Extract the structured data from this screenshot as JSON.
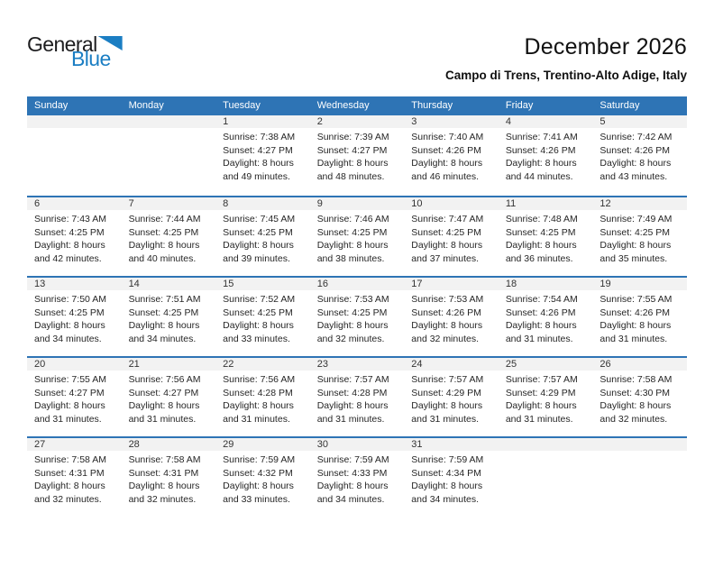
{
  "logo": {
    "word_general": "General",
    "word_blue": "Blue",
    "triangle_icon_color": "#1b7ec3"
  },
  "header": {
    "title": "December 2026",
    "subtitle": "Campo di Trens, Trentino-Alto Adige, Italy"
  },
  "colors": {
    "header_bar_blue": "#2e74b5",
    "week_divider_blue": "#2e74b5",
    "day_number_band_gray": "#f2f2f2",
    "logo_blue": "#1b7ec3",
    "body_text": "#262626"
  },
  "calendar": {
    "day_headers": [
      "Sunday",
      "Monday",
      "Tuesday",
      "Wednesday",
      "Thursday",
      "Friday",
      "Saturday"
    ],
    "weeks": [
      [
        null,
        null,
        {
          "day": "1",
          "sunrise": "Sunrise: 7:38 AM",
          "sunset": "Sunset: 4:27 PM",
          "daylight": "Daylight: 8 hours and 49 minutes."
        },
        {
          "day": "2",
          "sunrise": "Sunrise: 7:39 AM",
          "sunset": "Sunset: 4:27 PM",
          "daylight": "Daylight: 8 hours and 48 minutes."
        },
        {
          "day": "3",
          "sunrise": "Sunrise: 7:40 AM",
          "sunset": "Sunset: 4:26 PM",
          "daylight": "Daylight: 8 hours and 46 minutes."
        },
        {
          "day": "4",
          "sunrise": "Sunrise: 7:41 AM",
          "sunset": "Sunset: 4:26 PM",
          "daylight": "Daylight: 8 hours and 44 minutes."
        },
        {
          "day": "5",
          "sunrise": "Sunrise: 7:42 AM",
          "sunset": "Sunset: 4:26 PM",
          "daylight": "Daylight: 8 hours and 43 minutes."
        }
      ],
      [
        {
          "day": "6",
          "sunrise": "Sunrise: 7:43 AM",
          "sunset": "Sunset: 4:25 PM",
          "daylight": "Daylight: 8 hours and 42 minutes."
        },
        {
          "day": "7",
          "sunrise": "Sunrise: 7:44 AM",
          "sunset": "Sunset: 4:25 PM",
          "daylight": "Daylight: 8 hours and 40 minutes."
        },
        {
          "day": "8",
          "sunrise": "Sunrise: 7:45 AM",
          "sunset": "Sunset: 4:25 PM",
          "daylight": "Daylight: 8 hours and 39 minutes."
        },
        {
          "day": "9",
          "sunrise": "Sunrise: 7:46 AM",
          "sunset": "Sunset: 4:25 PM",
          "daylight": "Daylight: 8 hours and 38 minutes."
        },
        {
          "day": "10",
          "sunrise": "Sunrise: 7:47 AM",
          "sunset": "Sunset: 4:25 PM",
          "daylight": "Daylight: 8 hours and 37 minutes."
        },
        {
          "day": "11",
          "sunrise": "Sunrise: 7:48 AM",
          "sunset": "Sunset: 4:25 PM",
          "daylight": "Daylight: 8 hours and 36 minutes."
        },
        {
          "day": "12",
          "sunrise": "Sunrise: 7:49 AM",
          "sunset": "Sunset: 4:25 PM",
          "daylight": "Daylight: 8 hours and 35 minutes."
        }
      ],
      [
        {
          "day": "13",
          "sunrise": "Sunrise: 7:50 AM",
          "sunset": "Sunset: 4:25 PM",
          "daylight": "Daylight: 8 hours and 34 minutes."
        },
        {
          "day": "14",
          "sunrise": "Sunrise: 7:51 AM",
          "sunset": "Sunset: 4:25 PM",
          "daylight": "Daylight: 8 hours and 34 minutes."
        },
        {
          "day": "15",
          "sunrise": "Sunrise: 7:52 AM",
          "sunset": "Sunset: 4:25 PM",
          "daylight": "Daylight: 8 hours and 33 minutes."
        },
        {
          "day": "16",
          "sunrise": "Sunrise: 7:53 AM",
          "sunset": "Sunset: 4:25 PM",
          "daylight": "Daylight: 8 hours and 32 minutes."
        },
        {
          "day": "17",
          "sunrise": "Sunrise: 7:53 AM",
          "sunset": "Sunset: 4:26 PM",
          "daylight": "Daylight: 8 hours and 32 minutes."
        },
        {
          "day": "18",
          "sunrise": "Sunrise: 7:54 AM",
          "sunset": "Sunset: 4:26 PM",
          "daylight": "Daylight: 8 hours and 31 minutes."
        },
        {
          "day": "19",
          "sunrise": "Sunrise: 7:55 AM",
          "sunset": "Sunset: 4:26 PM",
          "daylight": "Daylight: 8 hours and 31 minutes."
        }
      ],
      [
        {
          "day": "20",
          "sunrise": "Sunrise: 7:55 AM",
          "sunset": "Sunset: 4:27 PM",
          "daylight": "Daylight: 8 hours and 31 minutes."
        },
        {
          "day": "21",
          "sunrise": "Sunrise: 7:56 AM",
          "sunset": "Sunset: 4:27 PM",
          "daylight": "Daylight: 8 hours and 31 minutes."
        },
        {
          "day": "22",
          "sunrise": "Sunrise: 7:56 AM",
          "sunset": "Sunset: 4:28 PM",
          "daylight": "Daylight: 8 hours and 31 minutes."
        },
        {
          "day": "23",
          "sunrise": "Sunrise: 7:57 AM",
          "sunset": "Sunset: 4:28 PM",
          "daylight": "Daylight: 8 hours and 31 minutes."
        },
        {
          "day": "24",
          "sunrise": "Sunrise: 7:57 AM",
          "sunset": "Sunset: 4:29 PM",
          "daylight": "Daylight: 8 hours and 31 minutes."
        },
        {
          "day": "25",
          "sunrise": "Sunrise: 7:57 AM",
          "sunset": "Sunset: 4:29 PM",
          "daylight": "Daylight: 8 hours and 31 minutes."
        },
        {
          "day": "26",
          "sunrise": "Sunrise: 7:58 AM",
          "sunset": "Sunset: 4:30 PM",
          "daylight": "Daylight: 8 hours and 32 minutes."
        }
      ],
      [
        {
          "day": "27",
          "sunrise": "Sunrise: 7:58 AM",
          "sunset": "Sunset: 4:31 PM",
          "daylight": "Daylight: 8 hours and 32 minutes."
        },
        {
          "day": "28",
          "sunrise": "Sunrise: 7:58 AM",
          "sunset": "Sunset: 4:31 PM",
          "daylight": "Daylight: 8 hours and 32 minutes."
        },
        {
          "day": "29",
          "sunrise": "Sunrise: 7:59 AM",
          "sunset": "Sunset: 4:32 PM",
          "daylight": "Daylight: 8 hours and 33 minutes."
        },
        {
          "day": "30",
          "sunrise": "Sunrise: 7:59 AM",
          "sunset": "Sunset: 4:33 PM",
          "daylight": "Daylight: 8 hours and 34 minutes."
        },
        {
          "day": "31",
          "sunrise": "Sunrise: 7:59 AM",
          "sunset": "Sunset: 4:34 PM",
          "daylight": "Daylight: 8 hours and 34 minutes."
        },
        null,
        null
      ]
    ]
  }
}
